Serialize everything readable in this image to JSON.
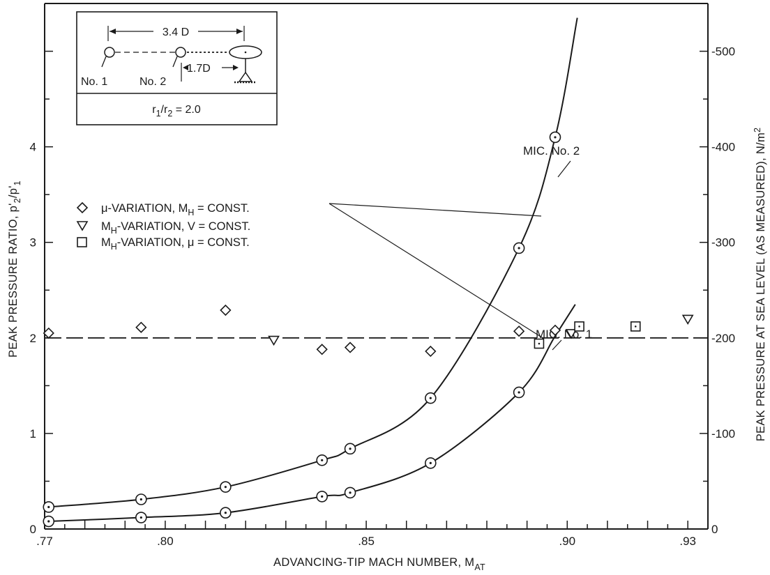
{
  "chart_data": {
    "type": "scatter",
    "title": "",
    "xlabel": "ADVANCING-TIP MACH NUMBER, M",
    "xlabel_sub": "AT",
    "ylabel_left": {
      "main": "PEAK PRESSURE RATIO, p'",
      "sub1": "2",
      "mid": "/p'",
      "sub2": "1"
    },
    "ylabel_right": {
      "main": "PEAK PRESSURE AT SEA LEVEL (AS MEASURED), N/m",
      "sup": "2"
    },
    "xlim": [
      0.77,
      0.935
    ],
    "ylim_left": [
      0,
      5.5
    ],
    "ylim_right": [
      0,
      550
    ],
    "x_ticks": [
      ".77",
      ".80",
      ".85",
      ".90",
      ".93"
    ],
    "y_ticks_left": [
      "0",
      "1",
      "2",
      "3",
      "4"
    ],
    "y_ticks_right": [
      "0",
      "-100",
      "-200",
      "-300",
      "-400",
      "-500"
    ],
    "reference_line": {
      "y": 2.0
    },
    "legend": [
      {
        "marker": "diamond",
        "label": "μ-VARIATION, M",
        "sub": "H",
        "rest": " = CONST."
      },
      {
        "marker": "triangle-down",
        "label": "M",
        "sub": "H",
        "rest": "-VARIATION, V = CONST."
      },
      {
        "marker": "square",
        "label": "M",
        "sub": "H",
        "rest": "-VARIATION, μ = CONST."
      }
    ],
    "series": [
      {
        "marker": "diamond",
        "points": [
          [
            0.771,
            2.05
          ],
          [
            0.794,
            2.11
          ],
          [
            0.815,
            2.29
          ],
          [
            0.839,
            1.88
          ],
          [
            0.846,
            1.9
          ],
          [
            0.866,
            1.86
          ],
          [
            0.888,
            2.07
          ],
          [
            0.897,
            2.08
          ]
        ]
      },
      {
        "marker": "triangle-down",
        "points": [
          [
            0.827,
            1.98
          ],
          [
            0.901,
            2.05
          ],
          [
            0.93,
            2.2
          ]
        ]
      },
      {
        "marker": "square",
        "points": [
          [
            0.893,
            1.94
          ],
          [
            0.903,
            2.12
          ],
          [
            0.917,
            2.12
          ]
        ]
      },
      {
        "name": "MIC. No. 2",
        "marker": "circle-dot",
        "points": [
          [
            0.771,
            0.23
          ],
          [
            0.794,
            0.31
          ],
          [
            0.815,
            0.44
          ],
          [
            0.839,
            0.72
          ],
          [
            0.846,
            0.84
          ],
          [
            0.866,
            1.37
          ],
          [
            0.888,
            2.94
          ],
          [
            0.897,
            4.1
          ]
        ]
      },
      {
        "name": "MIC. No. 1",
        "marker": "circle-dot",
        "points": [
          [
            0.771,
            0.08
          ],
          [
            0.794,
            0.12
          ],
          [
            0.815,
            0.17
          ],
          [
            0.839,
            0.34
          ],
          [
            0.846,
            0.38
          ],
          [
            0.866,
            0.69
          ],
          [
            0.888,
            1.43
          ]
        ]
      }
    ],
    "curves": [
      {
        "name": "MIC. No. 2",
        "points": [
          [
            0.771,
            0.23
          ],
          [
            0.794,
            0.31
          ],
          [
            0.815,
            0.44
          ],
          [
            0.839,
            0.72
          ],
          [
            0.846,
            0.84
          ],
          [
            0.866,
            1.37
          ],
          [
            0.888,
            2.94
          ],
          [
            0.897,
            4.1
          ],
          [
            0.9025,
            5.35
          ]
        ]
      },
      {
        "name": "MIC. No. 1",
        "points": [
          [
            0.771,
            0.08
          ],
          [
            0.794,
            0.12
          ],
          [
            0.815,
            0.17
          ],
          [
            0.839,
            0.34
          ],
          [
            0.846,
            0.38
          ],
          [
            0.866,
            0.69
          ],
          [
            0.888,
            1.43
          ],
          [
            0.897,
            2.02
          ],
          [
            0.902,
            2.35
          ]
        ]
      }
    ],
    "annotations": {
      "mic2": "MIC. No. 2",
      "mic1": "MIC. No. 1"
    },
    "inset": {
      "dimension_long": "3.4 D",
      "dimension_short": "1.7D",
      "mic1_label": "No. 1",
      "mic2_label": "No. 2",
      "ratio_main": "r",
      "ratio_sub1": "1",
      "ratio_mid": "/r",
      "ratio_sub2": "2",
      "ratio_value": " = 2.0"
    }
  }
}
